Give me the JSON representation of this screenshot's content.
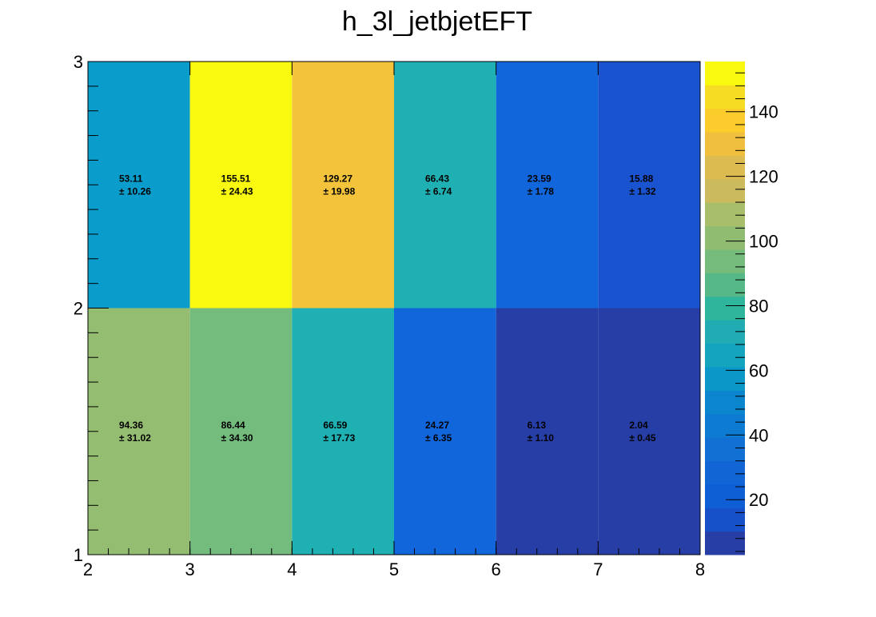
{
  "chart_data": {
    "type": "heatmap",
    "title": "h_3l_jetbjetEFT",
    "xlabel": "",
    "ylabel": "",
    "x_edges": [
      2,
      3,
      4,
      5,
      6,
      7,
      8
    ],
    "y_edges": [
      1,
      2,
      3
    ],
    "x_ticks": [
      "2",
      "3",
      "4",
      "5",
      "6",
      "7",
      "8"
    ],
    "y_ticks": [
      "1",
      "2",
      "3"
    ],
    "z_range": [
      3,
      155.51
    ],
    "colorbar_ticks": [
      "20",
      "40",
      "60",
      "80",
      "100",
      "120",
      "140"
    ],
    "colorbar_tick_values": [
      20,
      40,
      60,
      80,
      100,
      120,
      140
    ],
    "colorbar_colors": [
      "#283ea7",
      "#1651c9",
      "#0e5ed6",
      "#1265d5",
      "#1270d4",
      "#0c7bd1",
      "#0b86ce",
      "#0b98c8",
      "#14a4be",
      "#20acb2",
      "#30b59d",
      "#56b887",
      "#74bb7c",
      "#90bc72",
      "#a8be6b",
      "#cbbb5e",
      "#dcbb50",
      "#f0bf3d",
      "#fbcc2c",
      "#f6dc22",
      "#f9f90f"
    ],
    "cells": [
      {
        "x": 2.5,
        "y": 1.5,
        "value": "94.36",
        "error": "± 31.02",
        "color": "#95bd72"
      },
      {
        "x": 3.5,
        "y": 1.5,
        "value": "86.44",
        "error": "± 34.30",
        "color": "#74bb7e"
      },
      {
        "x": 4.5,
        "y": 1.5,
        "value": "66.59",
        "error": "± 17.73",
        "color": "#1fb0b3"
      },
      {
        "x": 5.5,
        "y": 1.5,
        "value": "24.27",
        "error": "± 6.35",
        "color": "#1166dc"
      },
      {
        "x": 6.5,
        "y": 1.5,
        "value": "6.13",
        "error": "± 1.10",
        "color": "#283ea7"
      },
      {
        "x": 7.5,
        "y": 1.5,
        "value": "2.04",
        "error": "± 0.45",
        "color": "#283ea7"
      },
      {
        "x": 2.5,
        "y": 2.5,
        "value": "53.11",
        "error": "± 10.26",
        "color": "#0a9dcb"
      },
      {
        "x": 3.5,
        "y": 2.5,
        "value": "155.51",
        "error": "± 24.43",
        "color": "#f8f90f"
      },
      {
        "x": 4.5,
        "y": 2.5,
        "value": "129.27",
        "error": "± 19.98",
        "color": "#f2c33b"
      },
      {
        "x": 5.5,
        "y": 2.5,
        "value": "66.43",
        "error": "± 6.74",
        "color": "#1fb0b3"
      },
      {
        "x": 6.5,
        "y": 2.5,
        "value": "23.59",
        "error": "± 1.78",
        "color": "#1166dc"
      },
      {
        "x": 7.5,
        "y": 2.5,
        "value": "15.88",
        "error": "± 1.32",
        "color": "#1953cf"
      }
    ]
  }
}
